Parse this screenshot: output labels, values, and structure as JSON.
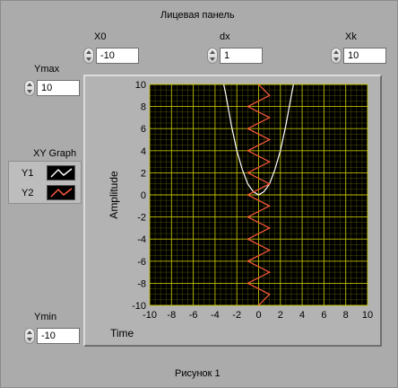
{
  "panel": {
    "title": "Лицевая панель",
    "caption": "Рисунок 1"
  },
  "controls": {
    "x0": {
      "label": "X0",
      "value": "-10"
    },
    "dx": {
      "label": "dx",
      "value": "1"
    },
    "xk": {
      "label": "Xk",
      "value": "10"
    },
    "ymax": {
      "label": "Ymax",
      "value": "10"
    },
    "ymin": {
      "label": "Ymin",
      "value": "-10"
    }
  },
  "legend": {
    "title": "XY Graph",
    "items": [
      {
        "name": "Y1",
        "color": "#ffffff"
      },
      {
        "name": "Y2",
        "color": "#ff5a3c"
      }
    ]
  },
  "colors": {
    "plot_bg": "#000000",
    "grid": "#c8c800",
    "axis_text": "#000000",
    "y1": "#ffffff",
    "y2": "#ff5a3c"
  },
  "chart_data": {
    "type": "line",
    "xlabel": "Time",
    "ylabel": "Amplitude",
    "xlim": [
      -10,
      10
    ],
    "ylim": [
      -10,
      10
    ],
    "x_ticks": [
      -10,
      -8,
      -6,
      -4,
      -2,
      0,
      2,
      4,
      6,
      8,
      10
    ],
    "y_ticks": [
      -10,
      -8,
      -6,
      -4,
      -2,
      0,
      2,
      4,
      6,
      8,
      10
    ],
    "grid": true,
    "series": [
      {
        "name": "Y1",
        "x": [
          -3.2,
          -3,
          -2.5,
          -2,
          -1.5,
          -1,
          -0.5,
          0,
          0.5,
          1,
          1.5,
          2,
          2.5,
          3,
          3.2
        ],
        "y": [
          10,
          9,
          6.3,
          4,
          2.3,
          1,
          0.3,
          0,
          0.3,
          1,
          2.3,
          4,
          6.3,
          9,
          10
        ]
      },
      {
        "name": "Y2",
        "x": [
          0,
          1,
          -1,
          1,
          -1,
          1,
          -1,
          1,
          -1,
          1,
          -1,
          1,
          -1,
          1,
          -1,
          1,
          -1,
          1,
          -1,
          1,
          0
        ],
        "y": [
          -10,
          -9,
          -8,
          -7,
          -6,
          -5,
          -4,
          -3,
          -2,
          -1,
          0,
          1,
          2,
          3,
          4,
          5,
          6,
          7,
          8,
          9,
          10
        ]
      }
    ]
  }
}
